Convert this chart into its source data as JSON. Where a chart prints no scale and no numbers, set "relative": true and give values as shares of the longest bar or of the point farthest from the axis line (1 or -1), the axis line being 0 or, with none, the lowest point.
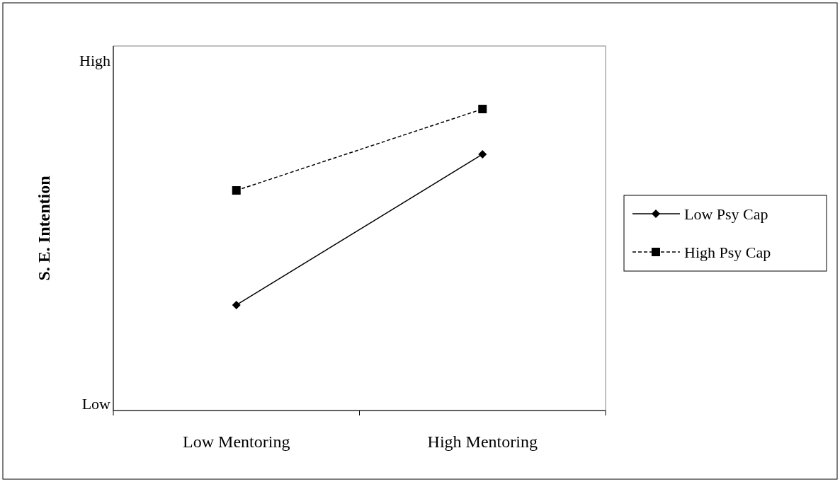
{
  "chart_data": {
    "type": "line",
    "relative": true,
    "ylabel": "S. E. Intention",
    "categories": [
      "Low Mentoring",
      "High Mentoring"
    ],
    "series": [
      {
        "name": "Low Psy Cap",
        "color": "#000000",
        "values": [
          0.35,
          0.85
        ],
        "marker": "diamond",
        "line_style": "solid"
      },
      {
        "name": "High Psy Cap",
        "color": "#000000",
        "values": [
          0.73,
          1
        ],
        "marker": "square",
        "line_style": "dashed"
      }
    ],
    "annotations": [
      "High",
      "Low"
    ],
    "legend": "right"
  }
}
